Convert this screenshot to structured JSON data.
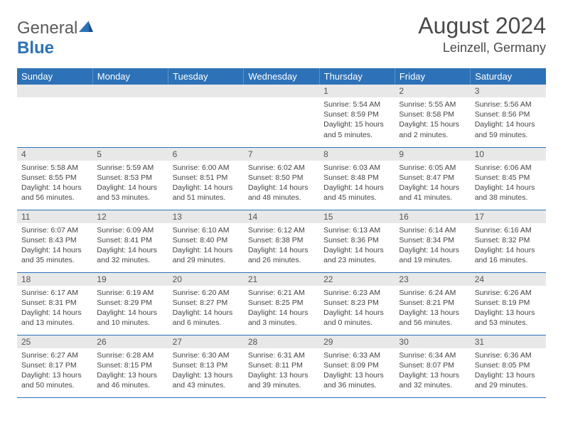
{
  "colors": {
    "header_blue": "#2d72b8",
    "header_text": "#ffffff",
    "daynum_bg": "#e8e8e8",
    "body_text": "#444444",
    "row_divider": "#2d72b8"
  },
  "logo": {
    "prefix": "General",
    "suffix": "Blue"
  },
  "title": {
    "month": "August 2024",
    "location": "Leinzell, Germany"
  },
  "day_names": [
    "Sunday",
    "Monday",
    "Tuesday",
    "Wednesday",
    "Thursday",
    "Friday",
    "Saturday"
  ],
  "weeks": [
    [
      {
        "n": "",
        "sr": "",
        "ss": "",
        "dl": ""
      },
      {
        "n": "",
        "sr": "",
        "ss": "",
        "dl": ""
      },
      {
        "n": "",
        "sr": "",
        "ss": "",
        "dl": ""
      },
      {
        "n": "",
        "sr": "",
        "ss": "",
        "dl": ""
      },
      {
        "n": "1",
        "sr": "Sunrise: 5:54 AM",
        "ss": "Sunset: 8:59 PM",
        "dl": "Daylight: 15 hours and 5 minutes."
      },
      {
        "n": "2",
        "sr": "Sunrise: 5:55 AM",
        "ss": "Sunset: 8:58 PM",
        "dl": "Daylight: 15 hours and 2 minutes."
      },
      {
        "n": "3",
        "sr": "Sunrise: 5:56 AM",
        "ss": "Sunset: 8:56 PM",
        "dl": "Daylight: 14 hours and 59 minutes."
      }
    ],
    [
      {
        "n": "4",
        "sr": "Sunrise: 5:58 AM",
        "ss": "Sunset: 8:55 PM",
        "dl": "Daylight: 14 hours and 56 minutes."
      },
      {
        "n": "5",
        "sr": "Sunrise: 5:59 AM",
        "ss": "Sunset: 8:53 PM",
        "dl": "Daylight: 14 hours and 53 minutes."
      },
      {
        "n": "6",
        "sr": "Sunrise: 6:00 AM",
        "ss": "Sunset: 8:51 PM",
        "dl": "Daylight: 14 hours and 51 minutes."
      },
      {
        "n": "7",
        "sr": "Sunrise: 6:02 AM",
        "ss": "Sunset: 8:50 PM",
        "dl": "Daylight: 14 hours and 48 minutes."
      },
      {
        "n": "8",
        "sr": "Sunrise: 6:03 AM",
        "ss": "Sunset: 8:48 PM",
        "dl": "Daylight: 14 hours and 45 minutes."
      },
      {
        "n": "9",
        "sr": "Sunrise: 6:05 AM",
        "ss": "Sunset: 8:47 PM",
        "dl": "Daylight: 14 hours and 41 minutes."
      },
      {
        "n": "10",
        "sr": "Sunrise: 6:06 AM",
        "ss": "Sunset: 8:45 PM",
        "dl": "Daylight: 14 hours and 38 minutes."
      }
    ],
    [
      {
        "n": "11",
        "sr": "Sunrise: 6:07 AM",
        "ss": "Sunset: 8:43 PM",
        "dl": "Daylight: 14 hours and 35 minutes."
      },
      {
        "n": "12",
        "sr": "Sunrise: 6:09 AM",
        "ss": "Sunset: 8:41 PM",
        "dl": "Daylight: 14 hours and 32 minutes."
      },
      {
        "n": "13",
        "sr": "Sunrise: 6:10 AM",
        "ss": "Sunset: 8:40 PM",
        "dl": "Daylight: 14 hours and 29 minutes."
      },
      {
        "n": "14",
        "sr": "Sunrise: 6:12 AM",
        "ss": "Sunset: 8:38 PM",
        "dl": "Daylight: 14 hours and 26 minutes."
      },
      {
        "n": "15",
        "sr": "Sunrise: 6:13 AM",
        "ss": "Sunset: 8:36 PM",
        "dl": "Daylight: 14 hours and 23 minutes."
      },
      {
        "n": "16",
        "sr": "Sunrise: 6:14 AM",
        "ss": "Sunset: 8:34 PM",
        "dl": "Daylight: 14 hours and 19 minutes."
      },
      {
        "n": "17",
        "sr": "Sunrise: 6:16 AM",
        "ss": "Sunset: 8:32 PM",
        "dl": "Daylight: 14 hours and 16 minutes."
      }
    ],
    [
      {
        "n": "18",
        "sr": "Sunrise: 6:17 AM",
        "ss": "Sunset: 8:31 PM",
        "dl": "Daylight: 14 hours and 13 minutes."
      },
      {
        "n": "19",
        "sr": "Sunrise: 6:19 AM",
        "ss": "Sunset: 8:29 PM",
        "dl": "Daylight: 14 hours and 10 minutes."
      },
      {
        "n": "20",
        "sr": "Sunrise: 6:20 AM",
        "ss": "Sunset: 8:27 PM",
        "dl": "Daylight: 14 hours and 6 minutes."
      },
      {
        "n": "21",
        "sr": "Sunrise: 6:21 AM",
        "ss": "Sunset: 8:25 PM",
        "dl": "Daylight: 14 hours and 3 minutes."
      },
      {
        "n": "22",
        "sr": "Sunrise: 6:23 AM",
        "ss": "Sunset: 8:23 PM",
        "dl": "Daylight: 14 hours and 0 minutes."
      },
      {
        "n": "23",
        "sr": "Sunrise: 6:24 AM",
        "ss": "Sunset: 8:21 PM",
        "dl": "Daylight: 13 hours and 56 minutes."
      },
      {
        "n": "24",
        "sr": "Sunrise: 6:26 AM",
        "ss": "Sunset: 8:19 PM",
        "dl": "Daylight: 13 hours and 53 minutes."
      }
    ],
    [
      {
        "n": "25",
        "sr": "Sunrise: 6:27 AM",
        "ss": "Sunset: 8:17 PM",
        "dl": "Daylight: 13 hours and 50 minutes."
      },
      {
        "n": "26",
        "sr": "Sunrise: 6:28 AM",
        "ss": "Sunset: 8:15 PM",
        "dl": "Daylight: 13 hours and 46 minutes."
      },
      {
        "n": "27",
        "sr": "Sunrise: 6:30 AM",
        "ss": "Sunset: 8:13 PM",
        "dl": "Daylight: 13 hours and 43 minutes."
      },
      {
        "n": "28",
        "sr": "Sunrise: 6:31 AM",
        "ss": "Sunset: 8:11 PM",
        "dl": "Daylight: 13 hours and 39 minutes."
      },
      {
        "n": "29",
        "sr": "Sunrise: 6:33 AM",
        "ss": "Sunset: 8:09 PM",
        "dl": "Daylight: 13 hours and 36 minutes."
      },
      {
        "n": "30",
        "sr": "Sunrise: 6:34 AM",
        "ss": "Sunset: 8:07 PM",
        "dl": "Daylight: 13 hours and 32 minutes."
      },
      {
        "n": "31",
        "sr": "Sunrise: 6:36 AM",
        "ss": "Sunset: 8:05 PM",
        "dl": "Daylight: 13 hours and 29 minutes."
      }
    ]
  ]
}
